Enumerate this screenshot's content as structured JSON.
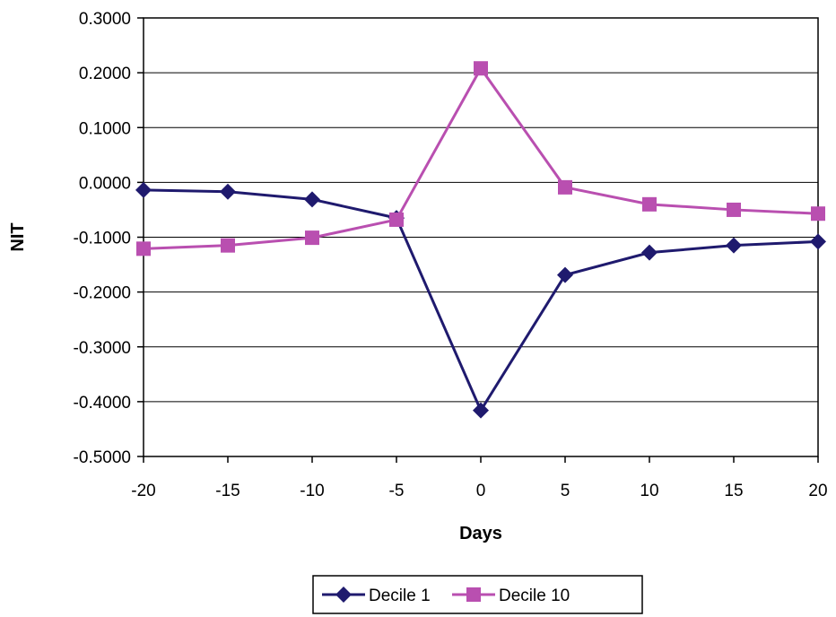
{
  "chart_data": {
    "type": "line",
    "title": "",
    "xlabel": "Days",
    "ylabel": "NIT",
    "x": [
      -20,
      -15,
      -10,
      -5,
      0,
      5,
      10,
      15,
      20
    ],
    "x_tick_labels": [
      "-20",
      "-15",
      "-10",
      "-5",
      "0",
      "5",
      "10",
      "15",
      "20"
    ],
    "y_tick_labels": [
      "0.3000",
      "0.2000",
      "0.1000",
      "0.0000",
      "-0.1000",
      "-0.2000",
      "-0.3000",
      "-0.4000",
      "-0.5000"
    ],
    "ylim": [
      -0.5,
      0.3
    ],
    "xlim": [
      -20,
      20
    ],
    "grid": "horizontal",
    "legend_position": "bottom",
    "series": [
      {
        "name": "Decile 1",
        "marker": "diamond",
        "color": "#1f1a6e",
        "values": [
          -0.014,
          -0.017,
          -0.031,
          -0.065,
          -0.416,
          -0.169,
          -0.128,
          -0.115,
          -0.108
        ]
      },
      {
        "name": "Decile 10",
        "marker": "square",
        "color": "#b94fb0",
        "values": [
          -0.121,
          -0.115,
          -0.101,
          -0.068,
          0.208,
          -0.009,
          -0.04,
          -0.05,
          -0.057
        ]
      }
    ]
  }
}
